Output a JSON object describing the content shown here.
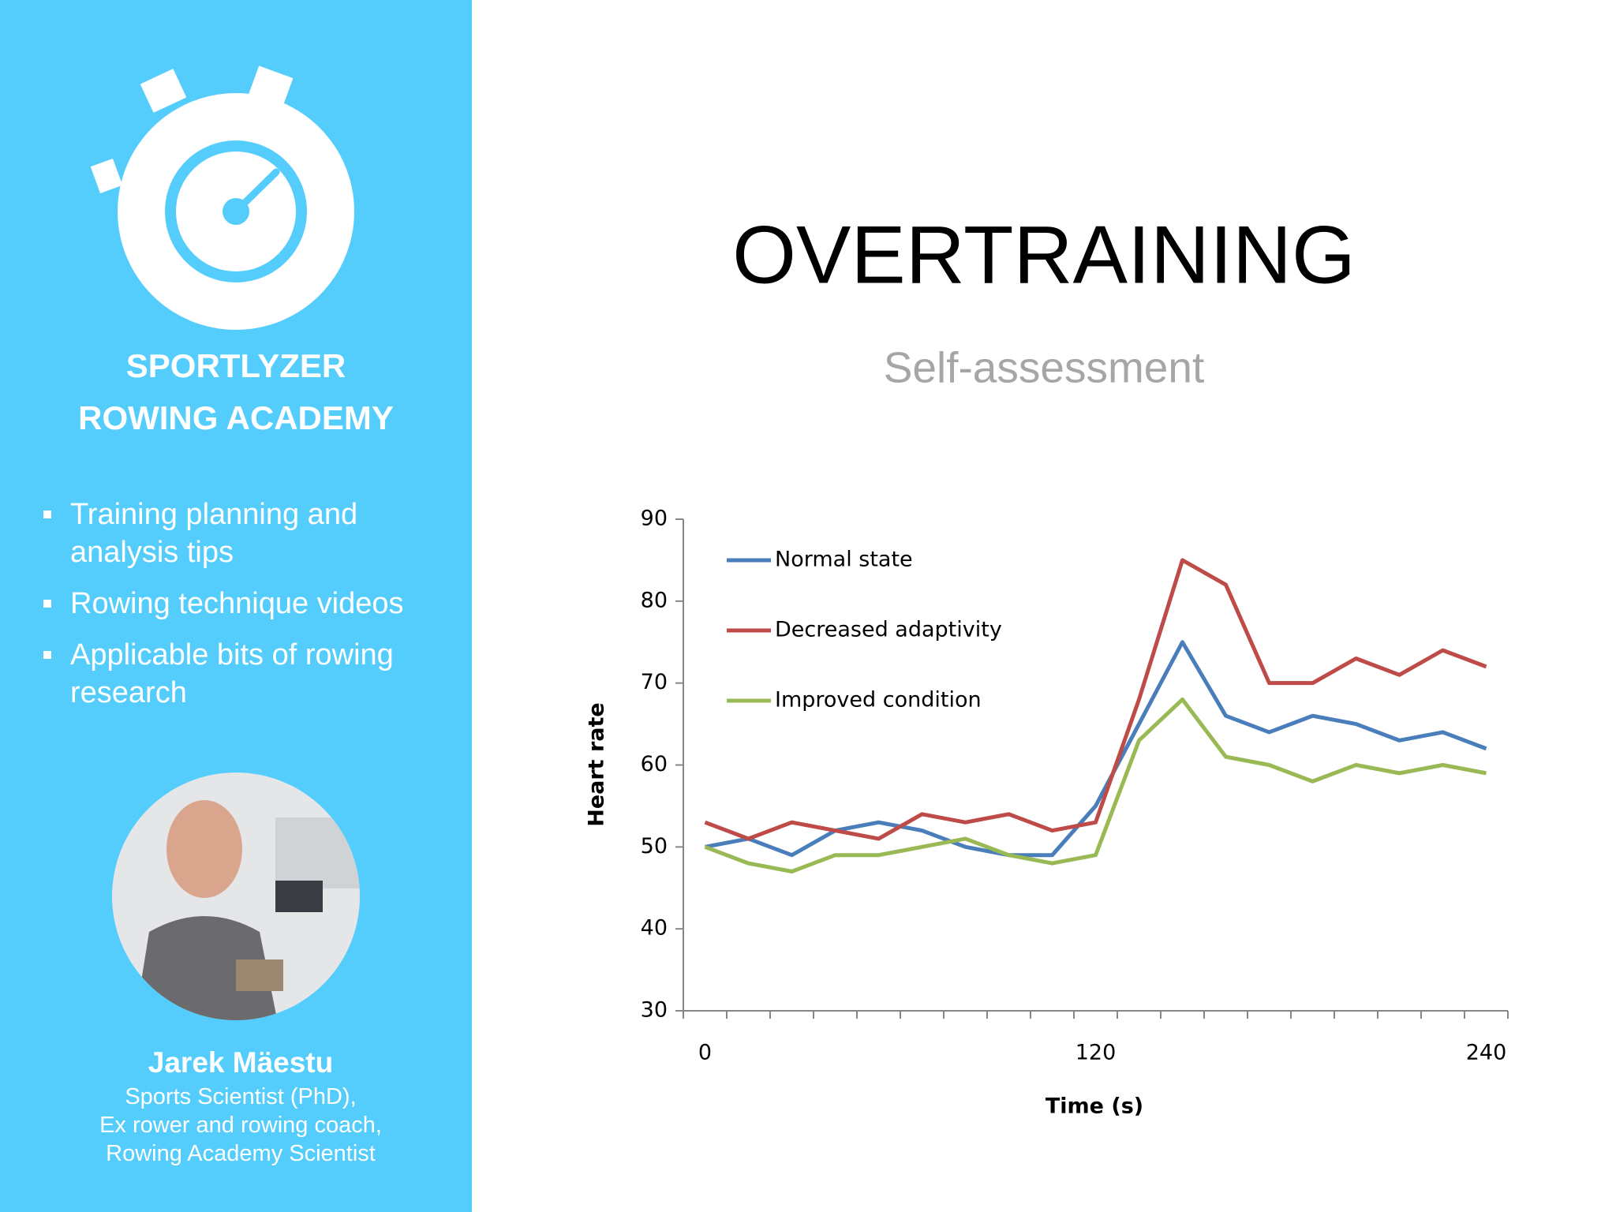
{
  "sidebar": {
    "brand": [
      "SPORTLYZER",
      "ROWING ACADEMY"
    ],
    "bullets": [
      "Training planning and analysis tips",
      "Rowing technique videos",
      "Applicable bits of rowing research"
    ],
    "author": {
      "name": "Jarek Mäestu",
      "lines": [
        "Sports Scientist (PhD),",
        "Ex rower and rowing coach,",
        "Rowing Academy Scientist"
      ]
    }
  },
  "slide": {
    "title": "OVERTRAINING",
    "subtitle": "Self-assessment"
  },
  "chart_data": {
    "type": "line",
    "x_label": "Time (s)",
    "y_label": "Heart rate",
    "categories": [
      "0",
      null,
      null,
      null,
      null,
      null,
      null,
      null,
      null,
      "120",
      null,
      null,
      null,
      null,
      null,
      null,
      null,
      null,
      "240"
    ],
    "series": [
      {
        "name": "Normal state",
        "color": "#4a7ebb",
        "values": [
          50,
          51,
          49,
          52,
          53,
          52,
          50,
          49,
          49,
          55,
          65,
          75,
          66,
          64,
          66,
          65,
          63,
          64,
          62
        ]
      },
      {
        "name": "Decreased adaptivity",
        "color": "#be4b48",
        "values": [
          53,
          51,
          53,
          52,
          51,
          54,
          53,
          54,
          52,
          53,
          68,
          85,
          82,
          70,
          70,
          73,
          71,
          74,
          72
        ]
      },
      {
        "name": "Improved condition",
        "color": "#98b954",
        "values": [
          50,
          48,
          47,
          49,
          49,
          50,
          51,
          49,
          48,
          49,
          63,
          68,
          61,
          60,
          58,
          60,
          59,
          60,
          59
        ]
      }
    ],
    "ylim": [
      30,
      90
    ],
    "yticks": [
      30,
      40,
      50,
      60,
      70,
      80,
      90
    ],
    "grid": false,
    "legend": "top-left"
  }
}
